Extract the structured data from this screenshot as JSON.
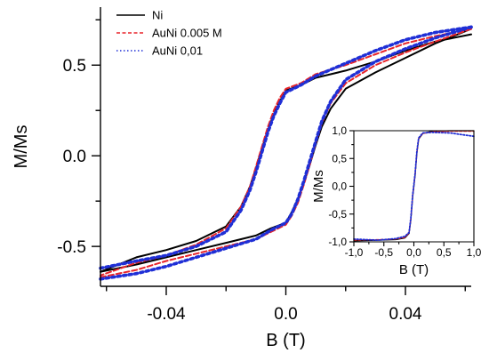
{
  "chart_data": [
    {
      "type": "line",
      "title": "",
      "xlabel": "B (T)",
      "ylabel": "M/Ms",
      "xlim": [
        -0.062,
        0.062
      ],
      "ylim": [
        -0.72,
        0.82
      ],
      "x_ticks": [
        -0.04,
        0.0,
        0.04
      ],
      "x_tick_labels": [
        "-0.04",
        "0.0",
        "0.04"
      ],
      "y_ticks": [
        0.5,
        0.0,
        -0.5
      ],
      "y_tick_labels": [
        "0.5",
        "0.0",
        "-0.5"
      ],
      "grid": false,
      "legend_position": "top-left",
      "series": [
        {
          "name": "Ni",
          "color": "#000000",
          "style": "solid",
          "descending": {
            "x": [
              0.062,
              0.05,
              0.04,
              0.03,
              0.02,
              0.01,
              0.005,
              0.0,
              -0.002,
              -0.004,
              -0.006,
              -0.008,
              -0.01,
              -0.012,
              -0.015,
              -0.02,
              -0.03,
              -0.04,
              -0.05,
              -0.062
            ],
            "y": [
              0.67,
              0.63,
              0.58,
              0.52,
              0.47,
              0.43,
              0.39,
              0.36,
              0.3,
              0.23,
              0.14,
              0.04,
              -0.07,
              -0.17,
              -0.28,
              -0.39,
              -0.47,
              -0.52,
              -0.56,
              -0.64
            ]
          },
          "ascending": {
            "x": [
              -0.062,
              -0.05,
              -0.04,
              -0.03,
              -0.02,
              -0.01,
              -0.005,
              0.0,
              0.002,
              0.004,
              0.006,
              0.008,
              0.01,
              0.012,
              0.015,
              0.02,
              0.03,
              0.04,
              0.05,
              0.062
            ],
            "y": [
              -0.64,
              -0.6,
              -0.56,
              -0.52,
              -0.48,
              -0.44,
              -0.4,
              -0.37,
              -0.31,
              -0.24,
              -0.15,
              -0.05,
              0.06,
              0.16,
              0.26,
              0.37,
              0.46,
              0.54,
              0.62,
              0.7
            ]
          }
        },
        {
          "name": "AuNi 0.005 M",
          "color": "#e8242a",
          "style": "dashed",
          "descending": {
            "x": [
              0.062,
              0.05,
              0.04,
              0.03,
              0.02,
              0.01,
              0.005,
              0.0,
              -0.002,
              -0.004,
              -0.006,
              -0.008,
              -0.01,
              -0.012,
              -0.015,
              -0.02,
              -0.03,
              -0.04,
              -0.05,
              -0.062
            ],
            "y": [
              0.7,
              0.66,
              0.62,
              0.56,
              0.5,
              0.45,
              0.4,
              0.37,
              0.32,
              0.25,
              0.16,
              0.05,
              -0.06,
              -0.17,
              -0.28,
              -0.4,
              -0.49,
              -0.55,
              -0.59,
              -0.66
            ]
          },
          "ascending": {
            "x": [
              -0.062,
              -0.05,
              -0.04,
              -0.03,
              -0.02,
              -0.01,
              -0.005,
              0.0,
              0.002,
              0.004,
              0.006,
              0.008,
              0.01,
              0.012,
              0.015,
              0.02,
              0.03,
              0.04,
              0.05,
              0.062
            ],
            "y": [
              -0.67,
              -0.63,
              -0.58,
              -0.54,
              -0.5,
              -0.46,
              -0.42,
              -0.38,
              -0.33,
              -0.26,
              -0.16,
              -0.05,
              0.07,
              0.18,
              0.29,
              0.4,
              0.5,
              0.57,
              0.63,
              0.7
            ]
          }
        },
        {
          "name": "AuNi 0,01",
          "color": "#1f2fd6",
          "style": "dotted",
          "descending": {
            "x": [
              0.062,
              0.05,
              0.04,
              0.03,
              0.02,
              0.01,
              0.005,
              0.0,
              -0.002,
              -0.004,
              -0.006,
              -0.008,
              -0.01,
              -0.012,
              -0.015,
              -0.02,
              -0.03,
              -0.04,
              -0.05,
              -0.062
            ],
            "y": [
              0.71,
              0.68,
              0.64,
              0.58,
              0.51,
              0.44,
              0.39,
              0.35,
              0.29,
              0.22,
              0.13,
              0.02,
              -0.09,
              -0.19,
              -0.3,
              -0.42,
              -0.5,
              -0.55,
              -0.58,
              -0.62
            ]
          },
          "ascending": {
            "x": [
              -0.062,
              -0.05,
              -0.04,
              -0.03,
              -0.02,
              -0.01,
              -0.005,
              0.0,
              0.002,
              0.004,
              0.006,
              0.008,
              0.01,
              0.012,
              0.015,
              0.02,
              0.03,
              0.04,
              0.05,
              0.062
            ],
            "y": [
              -0.68,
              -0.65,
              -0.61,
              -0.56,
              -0.51,
              -0.46,
              -0.41,
              -0.37,
              -0.32,
              -0.24,
              -0.14,
              -0.03,
              0.08,
              0.19,
              0.3,
              0.42,
              0.52,
              0.59,
              0.65,
              0.71
            ]
          }
        }
      ]
    },
    {
      "type": "line",
      "title": "",
      "xlabel": "B (T)",
      "ylabel": "M/Ms",
      "xlim": [
        -1.0,
        1.0
      ],
      "ylim": [
        -1.0,
        1.0
      ],
      "x_ticks": [
        -1.0,
        -0.5,
        0.0,
        0.5,
        1.0
      ],
      "x_tick_labels": [
        "-1,0",
        "-0,5",
        "0,0",
        "0,5",
        "1,0"
      ],
      "y_ticks": [
        1.0,
        0.5,
        0.0,
        -0.5,
        -1.0
      ],
      "y_tick_labels": [
        "1,0",
        "0,5",
        "0,0",
        "-0,5",
        "-1,0"
      ],
      "grid": false,
      "position": "inset bottom-right",
      "series": [
        {
          "name": "Ni",
          "color": "#000000",
          "style": "solid",
          "x": [
            -1.0,
            -0.6,
            -0.3,
            -0.15,
            -0.08,
            -0.05,
            -0.02,
            0.0,
            0.02,
            0.05,
            0.08,
            0.15,
            0.3,
            0.6,
            1.0
          ],
          "y": [
            -0.98,
            -0.97,
            -0.96,
            -0.93,
            -0.85,
            -0.6,
            -0.2,
            0.0,
            0.2,
            0.6,
            0.85,
            0.95,
            0.99,
            1.0,
            1.0
          ]
        },
        {
          "name": "AuNi 0.005 M",
          "color": "#e8242a",
          "style": "dashed",
          "x": [
            -1.0,
            -0.6,
            -0.3,
            -0.15,
            -0.08,
            -0.05,
            -0.02,
            0.0,
            0.02,
            0.05,
            0.08,
            0.15,
            0.3,
            0.6,
            1.0
          ],
          "y": [
            -0.97,
            -0.96,
            -0.95,
            -0.92,
            -0.84,
            -0.58,
            -0.18,
            0.02,
            0.22,
            0.62,
            0.86,
            0.95,
            0.98,
            0.99,
            0.99
          ]
        },
        {
          "name": "AuNi 0,01",
          "color": "#1f2fd6",
          "style": "dotted",
          "x": [
            -1.0,
            -0.6,
            -0.3,
            -0.15,
            -0.08,
            -0.05,
            -0.02,
            0.0,
            0.02,
            0.05,
            0.08,
            0.15,
            0.3,
            0.6,
            1.0
          ],
          "y": [
            -0.95,
            -0.97,
            -0.94,
            -0.9,
            -0.83,
            -0.57,
            -0.17,
            0.03,
            0.23,
            0.63,
            0.87,
            0.96,
            0.97,
            0.96,
            0.9
          ]
        }
      ]
    }
  ]
}
